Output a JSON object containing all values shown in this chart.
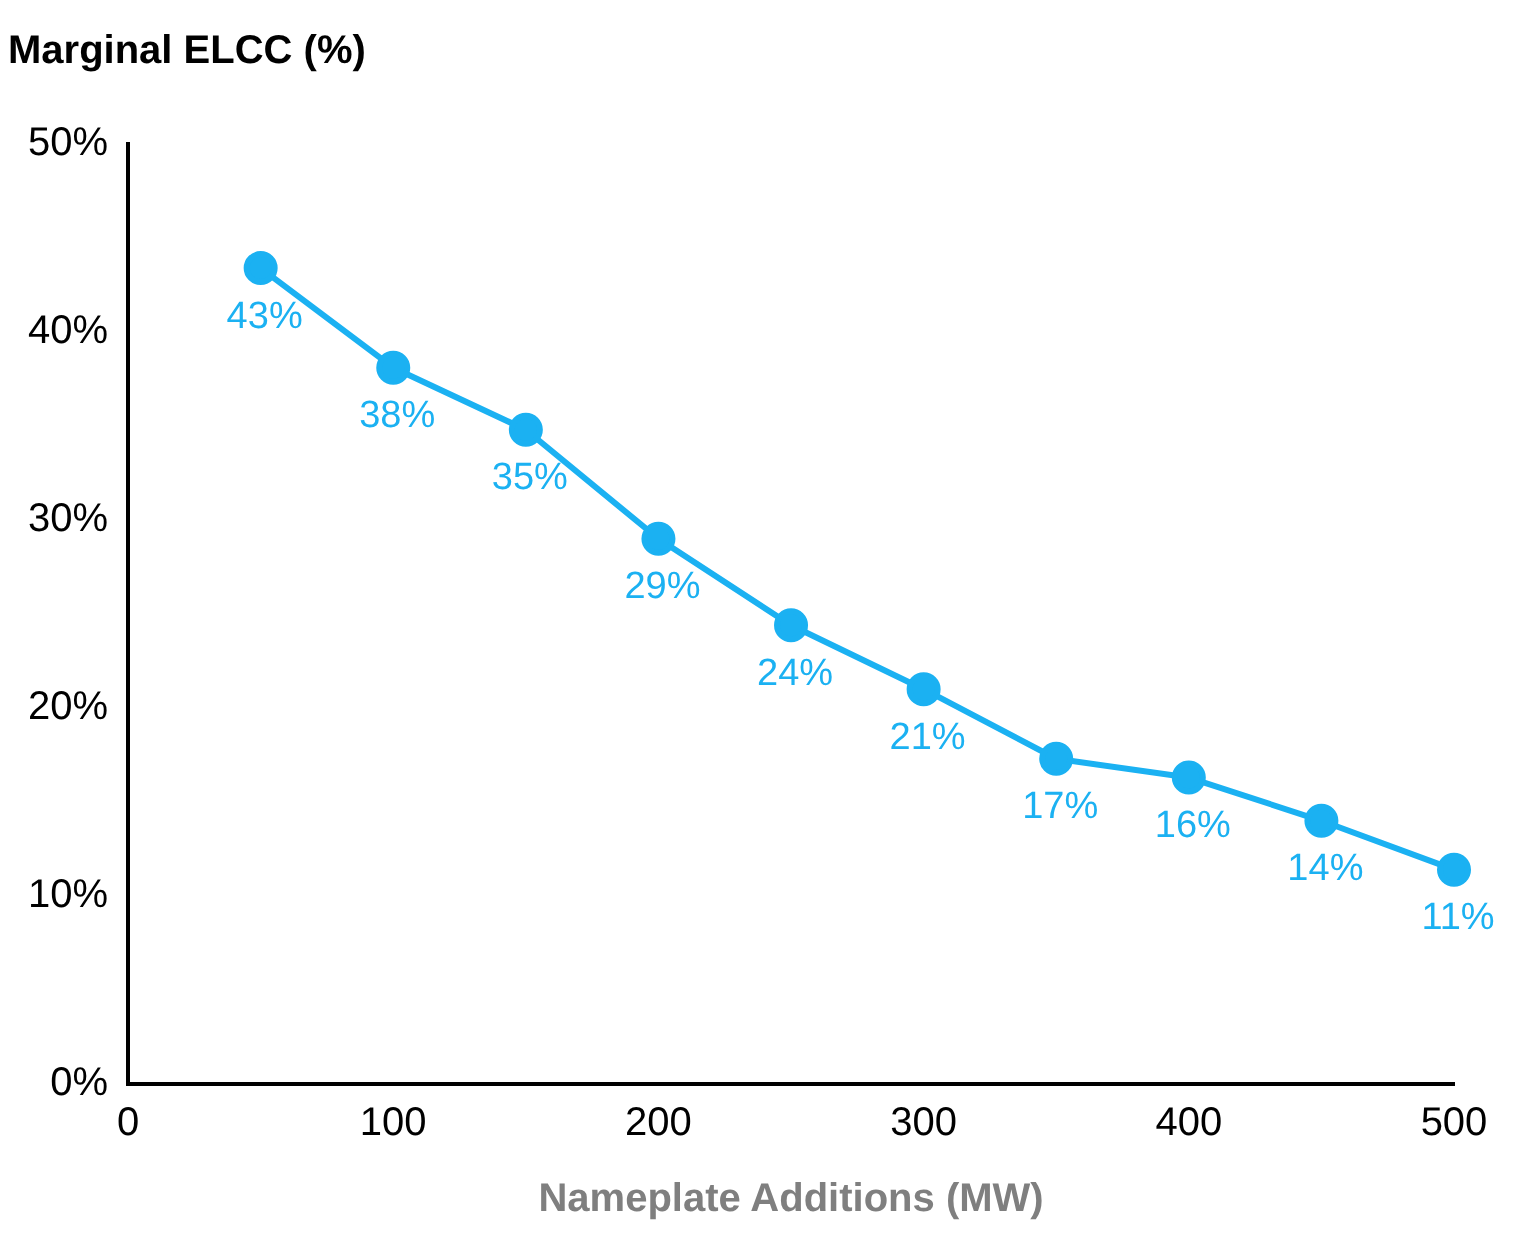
{
  "chart_data": {
    "type": "line",
    "title": "Marginal ELCC (%)",
    "xlabel": "Nameplate Additions (MW)",
    "x": [
      50,
      100,
      150,
      200,
      250,
      300,
      350,
      400,
      450,
      500
    ],
    "series": [
      {
        "color": "#1bb1f2",
        "values": [
          43.4,
          38.1,
          34.8,
          29.0,
          24.4,
          21.0,
          17.3,
          16.3,
          14.0,
          11.4
        ],
        "value_labels": [
          "43%",
          "38%",
          "35%",
          "29%",
          "24%",
          "21%",
          "17%",
          "16%",
          "14%",
          "11%"
        ]
      }
    ],
    "xlim": [
      0,
      500
    ],
    "xticks": [
      0,
      100,
      200,
      300,
      400,
      500
    ],
    "ylim": [
      0,
      50
    ],
    "yticks": [
      {
        "value": 0,
        "label": "0%"
      },
      {
        "value": 10,
        "label": "10%"
      },
      {
        "value": 20,
        "label": "20%"
      },
      {
        "value": 30,
        "label": "30%"
      },
      {
        "value": 40,
        "label": "40%"
      },
      {
        "value": 50,
        "label": "50%"
      }
    ],
    "grid": false,
    "legend": false,
    "marker": "circle",
    "line_style": "solid"
  }
}
